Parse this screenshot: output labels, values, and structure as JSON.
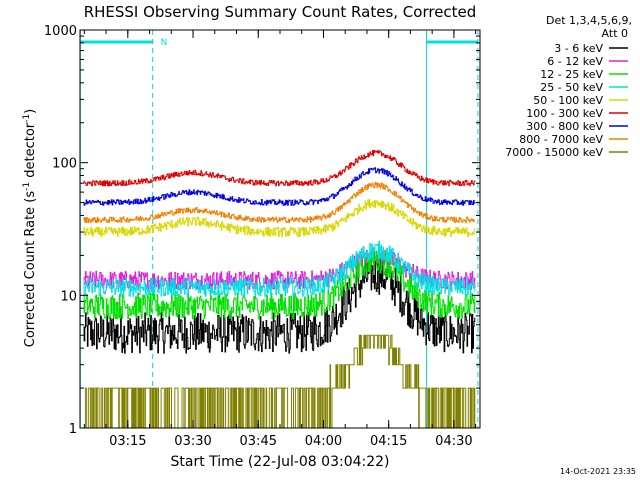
{
  "chart_data": {
    "type": "line",
    "title": "RHESSI Observing Summary Count Rates, Corrected",
    "xlabel": "Start Time (22-Jul-08 03:04:22)",
    "ylabel_base": "Corrected Count Rate (s",
    "ylabel_sup1": "-1",
    "ylabel_mid": " detector",
    "ylabel_sup2": "-1",
    "ylabel_end": ")",
    "yscale": "log",
    "ylim": [
      1,
      1000
    ],
    "y_ticks": [
      {
        "value": 1,
        "label": "1"
      },
      {
        "value": 10,
        "label": "10"
      },
      {
        "value": 100,
        "label": "100"
      },
      {
        "value": 1000,
        "label": "1000"
      }
    ],
    "xlim_minutes": [
      3.0667,
      4.6
    ],
    "x_ticks": [
      {
        "value": 3.25,
        "label": "03:15"
      },
      {
        "value": 3.5,
        "label": "03:30"
      },
      {
        "value": 3.75,
        "label": "03:45"
      },
      {
        "value": 4.0,
        "label": "04:00"
      },
      {
        "value": 4.25,
        "label": "04:15"
      },
      {
        "value": 4.5,
        "label": "04:30"
      }
    ],
    "legend_header": [
      "Det 1,3,4,5,6,9,",
      "Att 0"
    ],
    "series": [
      {
        "name": "3 - 6 keV",
        "color": "#000000",
        "base": 5.2,
        "bump1": 1.0,
        "peak": 14.5,
        "noise": 0.22
      },
      {
        "name": "6 - 12 keV",
        "color": "#e020e0",
        "base": 13.0,
        "bump1": 1.1,
        "peak": 20.0,
        "noise": 0.1
      },
      {
        "name": "12 - 25 keV",
        "color": "#00e000",
        "base": 8.3,
        "bump1": 1.0,
        "peak": 18.5,
        "noise": 0.14
      },
      {
        "name": "25 - 50 keV",
        "color": "#00e0e0",
        "base": 11.5,
        "bump1": 1.1,
        "peak": 22.0,
        "noise": 0.1
      },
      {
        "name": "50 - 100 keV",
        "color": "#d8d800",
        "base": 30.0,
        "bump1": 36.0,
        "peak": 50.0,
        "noise": 0.05
      },
      {
        "name": "100 - 300 keV",
        "color": "#e00000",
        "base": 70.0,
        "bump1": 84.0,
        "peak": 118.0,
        "noise": 0.03
      },
      {
        "name": "300 - 800 keV",
        "color": "#0000e0",
        "base": 50.0,
        "bump1": 60.0,
        "peak": 88.0,
        "noise": 0.03
      },
      {
        "name": "800 - 7000 keV",
        "color": "#f08000",
        "base": 37.0,
        "bump1": 44.0,
        "peak": 68.0,
        "noise": 0.03
      },
      {
        "name": "7000 - 15000 keV",
        "color": "#808000",
        "base": 1.5,
        "bump1": 1.0,
        "peak": 4.7,
        "noise": 0.0
      }
    ],
    "time_range": {
      "start": 3.08,
      "end": 4.58,
      "peak_time": 4.2,
      "bump_time": 3.5
    },
    "saa_marker": "N",
    "saa_bar_color": "#00e0e0",
    "footer_timestamp": "14-Oct-2021 23:35"
  }
}
